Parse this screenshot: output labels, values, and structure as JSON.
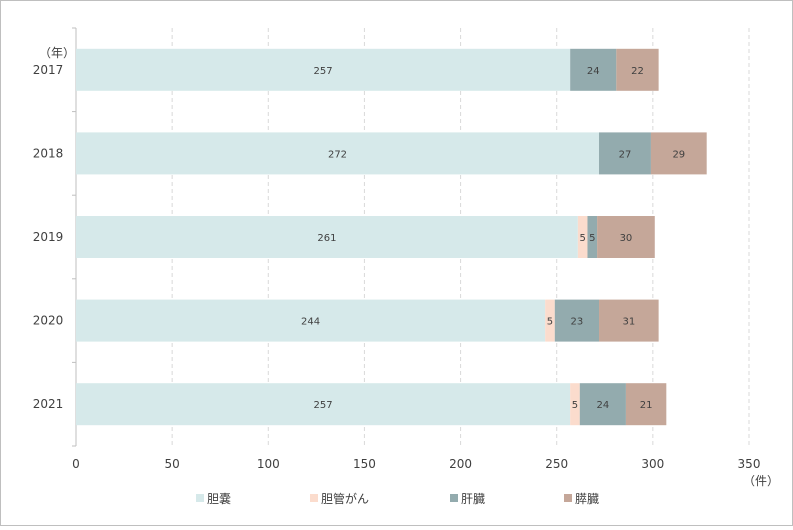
{
  "chart_data": {
    "type": "bar",
    "orientation": "horizontal",
    "stacked": true,
    "categories": [
      "2017",
      "2018",
      "2019",
      "2020",
      "2021"
    ],
    "y_unit": "（年）",
    "x_unit": "（件）",
    "xlim": [
      0,
      350
    ],
    "xticks": [
      "0",
      "50",
      "100",
      "150",
      "200",
      "250",
      "300",
      "350"
    ],
    "grid": true,
    "legend_position": "bottom",
    "series": [
      {
        "name": "胆嚢",
        "color": "#d6e9ea",
        "values": [
          257,
          272,
          261,
          244,
          257
        ]
      },
      {
        "name": "胆管がん",
        "color": "#fbdccd",
        "values": [
          0,
          0,
          5,
          5,
          5
        ]
      },
      {
        "name": "肝臓",
        "color": "#93abae",
        "values": [
          24,
          27,
          5,
          23,
          24
        ]
      },
      {
        "name": "膵臓",
        "color": "#c5a799",
        "values": [
          22,
          29,
          30,
          31,
          21
        ]
      }
    ]
  }
}
